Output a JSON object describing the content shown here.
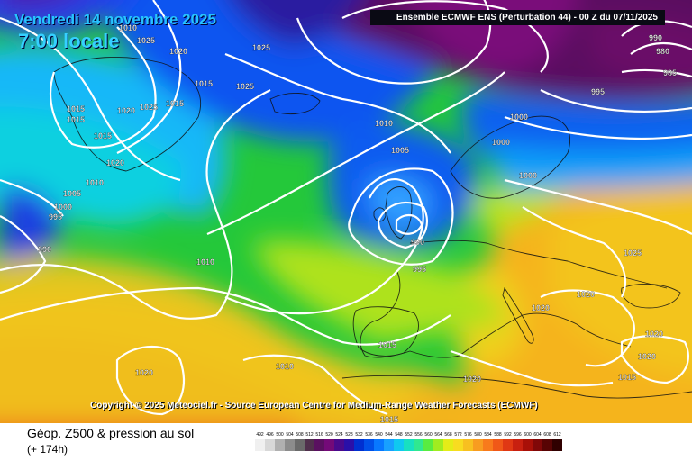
{
  "header": {
    "date": "Vendredi 14 novembre 2025",
    "local_time": "7:00 locale",
    "run_info": "Ensemble ECMWF ENS  (Perturbation 44)  -  00 Z du 07/11/2025"
  },
  "footer": {
    "copyright": "Copyright © 2025 Meteociel.fr - Source European Centre for Medium-Range Weather Forecasts (ECMWF)",
    "legend_title": "Géop. Z500 & pression au sol",
    "lead_time": "(+ 174h)"
  },
  "isobar_labels": [
    "1010",
    "1025",
    "1020",
    "1025",
    "1015",
    "1025",
    "1015",
    "1015",
    "1020",
    "1025",
    "1015",
    "1015",
    "1020",
    "1005",
    "1010",
    "1000",
    "995",
    "990",
    "1010",
    "1010",
    "1005",
    "990",
    "995",
    "1000",
    "1000",
    "1000",
    "995",
    "990",
    "980",
    "985",
    "1025",
    "1020",
    "1020",
    "1020",
    "1020",
    "1015",
    "1015",
    "1020",
    "1010",
    "1020",
    "1015"
  ],
  "legend_scale": {
    "labels": [
      "492",
      "496",
      "500",
      "504",
      "508",
      "512",
      "516",
      "520",
      "524",
      "528",
      "532",
      "536",
      "540",
      "544",
      "548",
      "552",
      "556",
      "560",
      "564",
      "568",
      "572",
      "576",
      "580",
      "584",
      "588",
      "592",
      "596",
      "600",
      "604",
      "608",
      "612"
    ],
    "colors": [
      "#f0f0f0",
      "#d8d8d8",
      "#b0b0b0",
      "#8c8c8c",
      "#6a6a6a",
      "#50304c",
      "#5a1060",
      "#740a78",
      "#4a0a8c",
      "#2a10a8",
      "#0030d0",
      "#0050e8",
      "#0878ff",
      "#18a0ff",
      "#10c8f0",
      "#18e0c0",
      "#30e890",
      "#58ec40",
      "#a0ec20",
      "#e4ec18",
      "#f8dc20",
      "#f8c020",
      "#f89c20",
      "#f87a1c",
      "#f05818",
      "#e03814",
      "#c82010",
      "#a81008",
      "#800808",
      "#580404",
      "#300000"
    ]
  }
}
